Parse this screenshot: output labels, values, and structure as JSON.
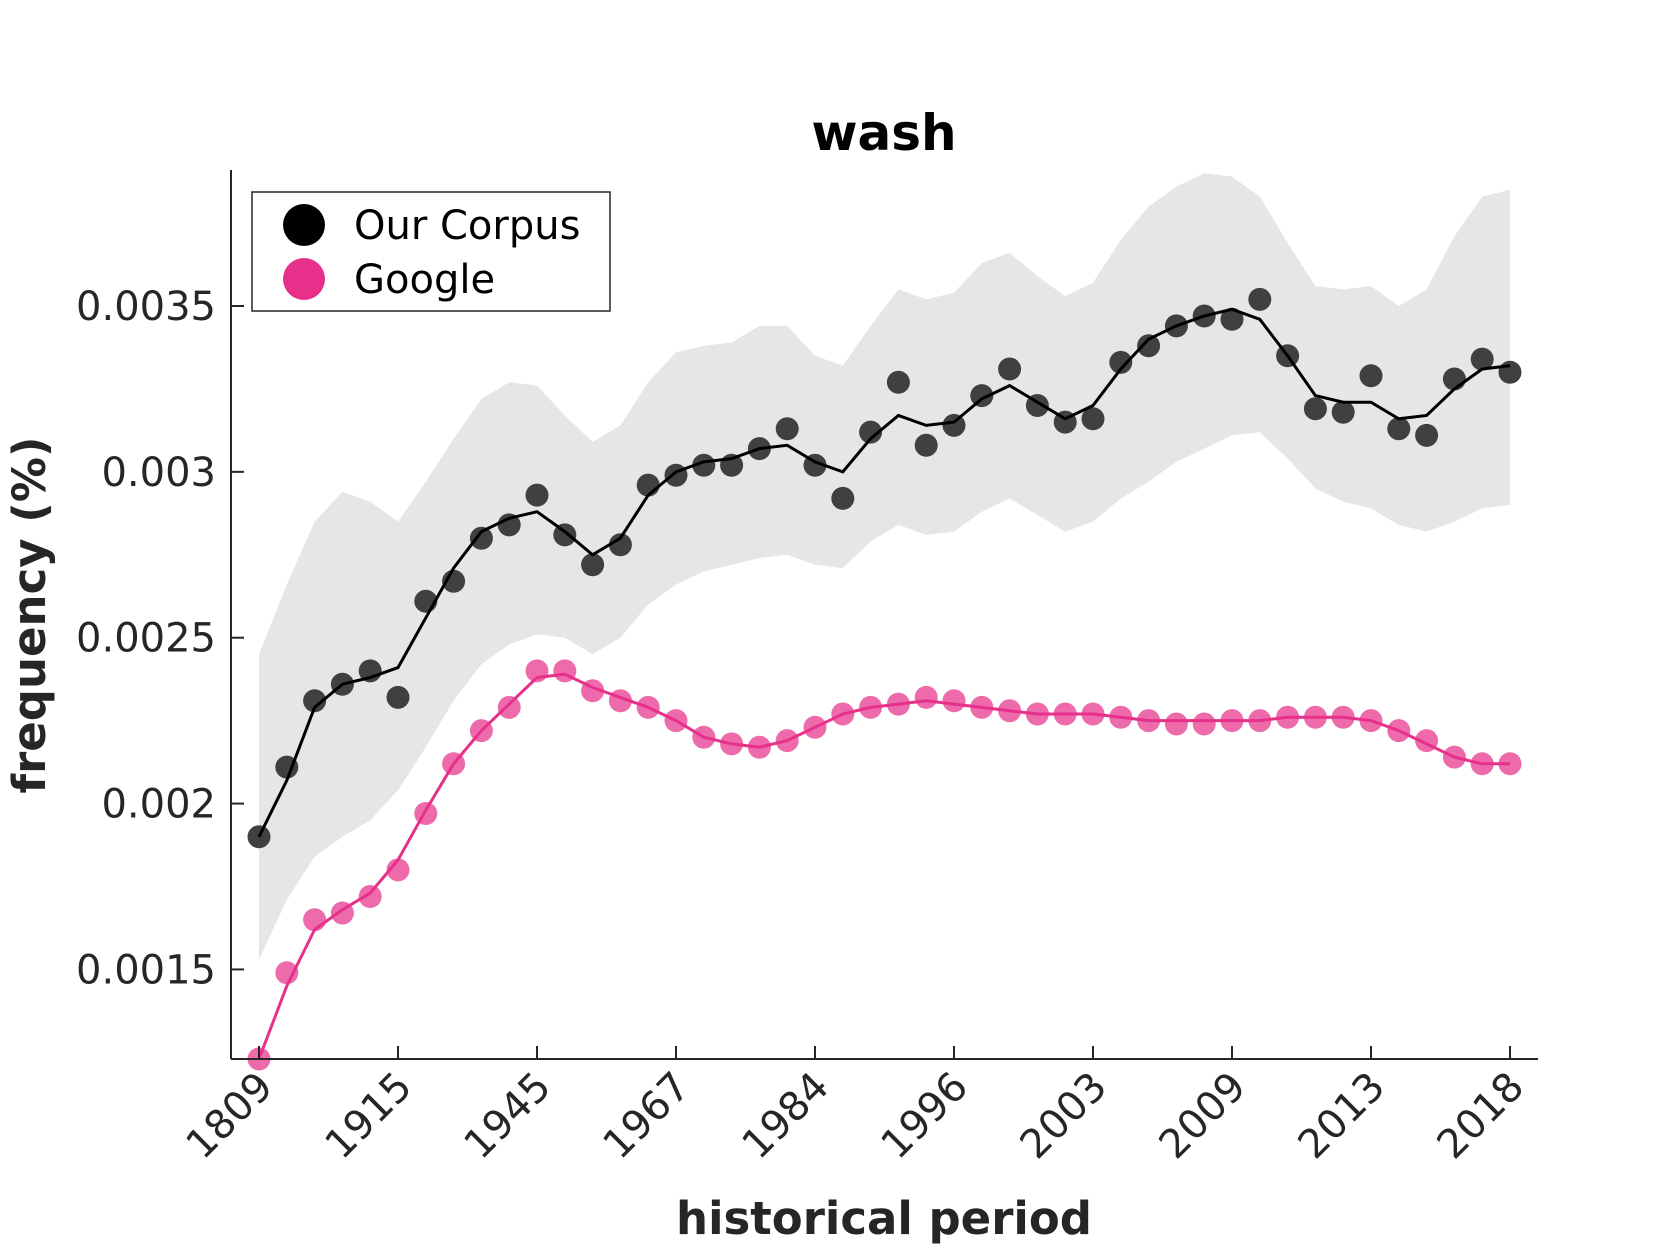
{
  "chart_data": {
    "type": "line",
    "title": "wash",
    "xlabel": "historical period",
    "ylabel": "frequency (%)",
    "ylim": [
      0.00123,
      0.00391
    ],
    "x_tick_labels": [
      "1809",
      "1915",
      "1945",
      "1967",
      "1984",
      "1996",
      "2003",
      "2009",
      "2013",
      "2018"
    ],
    "y_ticks": [
      0.0015,
      0.002,
      0.0025,
      0.003,
      0.0035
    ],
    "y_tick_labels": [
      "0.0015",
      "0.002",
      "0.0025",
      "0.003",
      "0.0035"
    ],
    "grid": false,
    "legend_position": "top-left",
    "legend": [
      "Our Corpus",
      "Google"
    ],
    "colors": {
      "our_corpus": "#000000",
      "our_corpus_points": "#404040",
      "google": "#e6308a",
      "band": "#e6e6e6"
    },
    "series": [
      {
        "name": "Our Corpus",
        "points": [
          0.0019,
          0.00211,
          0.00231,
          0.00236,
          0.0024,
          0.00232,
          0.00261,
          0.00267,
          0.0028,
          0.00284,
          0.00293,
          0.00281,
          0.00272,
          0.00278,
          0.00296,
          0.00299,
          0.00302,
          0.00302,
          0.00307,
          0.00313,
          0.00302,
          0.00292,
          0.00312,
          0.00327,
          0.00308,
          0.00314,
          0.00323,
          0.00331,
          0.0032,
          0.00315,
          0.00316,
          0.00333,
          0.00338,
          0.00344,
          0.00347,
          0.00346,
          0.00352,
          0.00335,
          0.00319,
          0.00318,
          0.00329,
          0.00313,
          0.00311,
          0.00328,
          0.00334,
          0.0033
        ],
        "smoothed": [
          0.0019,
          0.00207,
          0.00229,
          0.00236,
          0.00238,
          0.00241,
          0.00256,
          0.00271,
          0.00282,
          0.00286,
          0.00288,
          0.00282,
          0.00275,
          0.0028,
          0.00293,
          0.003,
          0.00303,
          0.00304,
          0.00307,
          0.00308,
          0.00303,
          0.003,
          0.0031,
          0.00317,
          0.00314,
          0.00315,
          0.00322,
          0.00326,
          0.00321,
          0.00316,
          0.0032,
          0.00331,
          0.0034,
          0.00344,
          0.00347,
          0.00349,
          0.00346,
          0.00335,
          0.00323,
          0.00321,
          0.00321,
          0.00316,
          0.00317,
          0.00325,
          0.00331,
          0.00332
        ],
        "band_upper": [
          0.00245,
          0.00266,
          0.00285,
          0.00294,
          0.00291,
          0.00285,
          0.00297,
          0.0031,
          0.00322,
          0.00327,
          0.00326,
          0.00317,
          0.00309,
          0.00314,
          0.00327,
          0.00336,
          0.00338,
          0.00339,
          0.00344,
          0.00344,
          0.00335,
          0.00332,
          0.00344,
          0.00355,
          0.00352,
          0.00354,
          0.00363,
          0.00366,
          0.00359,
          0.00353,
          0.00357,
          0.0037,
          0.0038,
          0.00386,
          0.0039,
          0.00389,
          0.00383,
          0.00369,
          0.00356,
          0.00355,
          0.00356,
          0.0035,
          0.00355,
          0.00371,
          0.00383,
          0.00385
        ],
        "band_lower": [
          0.00153,
          0.00171,
          0.00184,
          0.0019,
          0.00195,
          0.00204,
          0.00217,
          0.00231,
          0.00242,
          0.00248,
          0.00251,
          0.0025,
          0.00245,
          0.0025,
          0.0026,
          0.00266,
          0.0027,
          0.00272,
          0.00274,
          0.00275,
          0.00272,
          0.00271,
          0.00279,
          0.00284,
          0.00281,
          0.00282,
          0.00288,
          0.00292,
          0.00287,
          0.00282,
          0.00285,
          0.00292,
          0.00297,
          0.00303,
          0.00307,
          0.00311,
          0.00312,
          0.00304,
          0.00295,
          0.00291,
          0.00289,
          0.00284,
          0.00282,
          0.00285,
          0.00289,
          0.0029
        ]
      },
      {
        "name": "Google",
        "points": [
          0.00123,
          0.00149,
          0.00165,
          0.00167,
          0.00172,
          0.0018,
          0.00197,
          0.00212,
          0.00222,
          0.00229,
          0.0024,
          0.0024,
          0.00234,
          0.00231,
          0.00229,
          0.00225,
          0.0022,
          0.00218,
          0.00217,
          0.00219,
          0.00223,
          0.00227,
          0.00229,
          0.0023,
          0.00232,
          0.00231,
          0.00229,
          0.00228,
          0.00227,
          0.00227,
          0.00227,
          0.00226,
          0.00225,
          0.00224,
          0.00224,
          0.00225,
          0.00225,
          0.00226,
          0.00226,
          0.00226,
          0.00225,
          0.00222,
          0.00219,
          0.00214,
          0.00212,
          0.00212
        ],
        "smoothed": [
          0.00123,
          0.00145,
          0.00162,
          0.00168,
          0.00173,
          0.00183,
          0.00198,
          0.00212,
          0.00222,
          0.0023,
          0.00238,
          0.00239,
          0.00235,
          0.00232,
          0.00229,
          0.00225,
          0.0022,
          0.00218,
          0.00217,
          0.00219,
          0.00223,
          0.00227,
          0.00229,
          0.0023,
          0.00231,
          0.0023,
          0.00229,
          0.00228,
          0.00227,
          0.00227,
          0.00227,
          0.00226,
          0.00225,
          0.00225,
          0.00225,
          0.00225,
          0.00225,
          0.00226,
          0.00226,
          0.00226,
          0.00225,
          0.00222,
          0.00218,
          0.00214,
          0.00212,
          0.00212
        ]
      }
    ]
  }
}
